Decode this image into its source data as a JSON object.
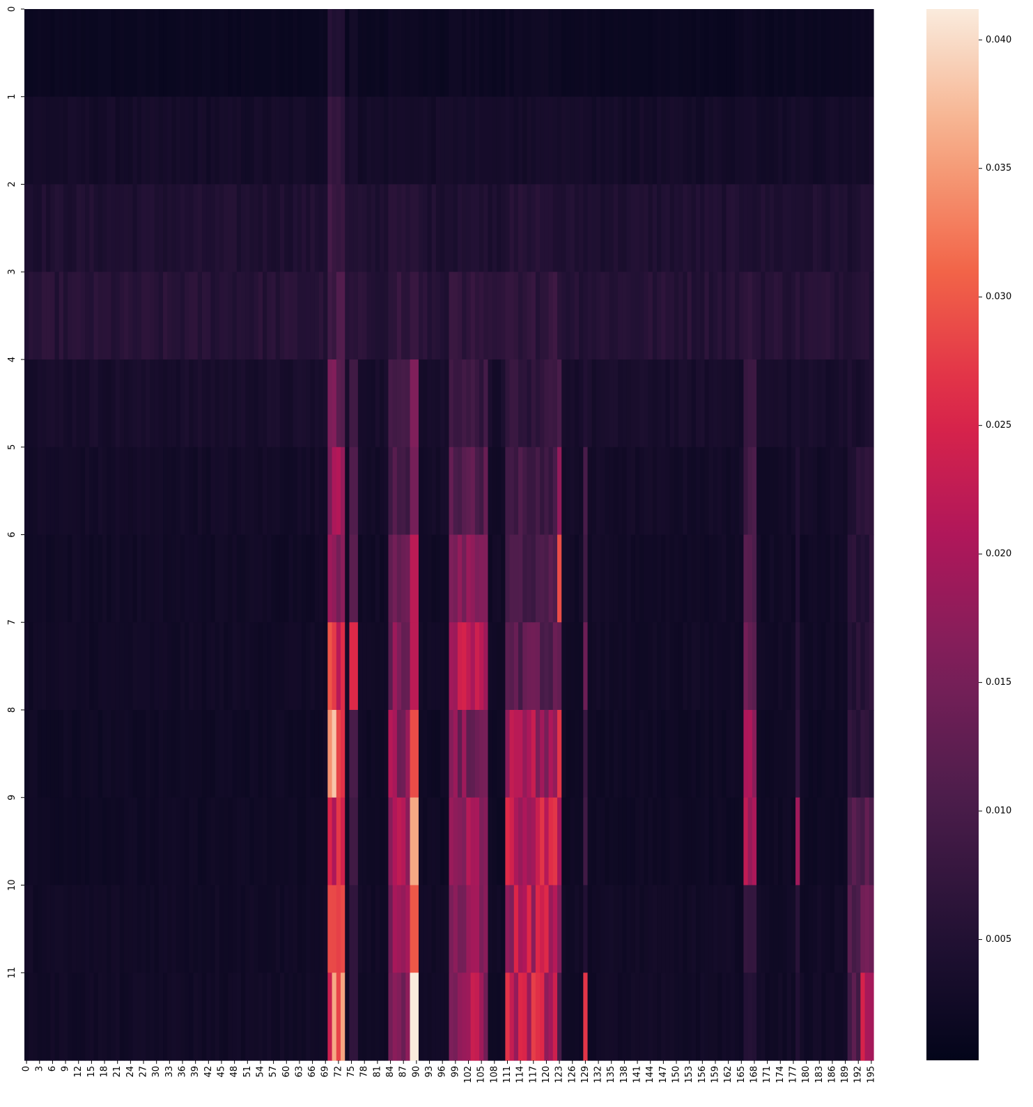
{
  "chart_data": {
    "type": "heatmap",
    "title": "",
    "xlabel": "",
    "ylabel": "",
    "rows": 12,
    "cols": 196,
    "row_labels": [
      "0",
      "1",
      "2",
      "3",
      "4",
      "5",
      "6",
      "7",
      "8",
      "9",
      "10",
      "11"
    ],
    "x_tick_step": 3,
    "x_tick_labels": [
      "0",
      "3",
      "6",
      "9",
      "12",
      "15",
      "18",
      "21",
      "24",
      "27",
      "30",
      "33",
      "36",
      "39",
      "42",
      "45",
      "48",
      "51",
      "54",
      "57",
      "60",
      "63",
      "66",
      "69",
      "72",
      "75",
      "78",
      "81",
      "84",
      "87",
      "90",
      "93",
      "96",
      "99",
      "102",
      "105",
      "108",
      "111",
      "114",
      "117",
      "120",
      "123",
      "126",
      "129",
      "132",
      "135",
      "138",
      "141",
      "144",
      "147",
      "150",
      "153",
      "156",
      "159",
      "162",
      "165",
      "168",
      "171",
      "174",
      "177",
      "180",
      "183",
      "186",
      "189",
      "192",
      "195"
    ],
    "colormap": "rocket",
    "colorbar": {
      "vmin": 0.0003,
      "vmax": 0.0412,
      "ticks": [
        0.005,
        0.01,
        0.015,
        0.02,
        0.025,
        0.03,
        0.035,
        0.04
      ],
      "tick_labels": [
        "0.005",
        "0.010",
        "0.015",
        "0.020",
        "0.025",
        "0.030",
        "0.035",
        "0.040"
      ]
    },
    "row_base_values": [
      0.0015,
      0.003,
      0.0045,
      0.0055,
      0.0035,
      0.0028,
      0.0025,
      0.0025,
      0.0022,
      0.0022,
      0.0025,
      0.0025
    ],
    "hotspots": [
      {
        "cols": [
          70,
          71,
          72,
          73
        ],
        "values": [
          0.006,
          0.007,
          0.008,
          0.009,
          0.014,
          0.018,
          0.016,
          0.024,
          0.034,
          0.022,
          0.028,
          0.03
        ]
      },
      {
        "cols": [
          75,
          76
        ],
        "values": [
          0.003,
          0.004,
          0.005,
          0.006,
          0.009,
          0.011,
          0.012,
          0.026,
          0.01,
          0.009,
          0.007,
          0.007
        ]
      },
      {
        "cols": [
          84,
          85,
          86,
          87,
          88
        ],
        "values": [
          0.002,
          0.003,
          0.005,
          0.007,
          0.008,
          0.01,
          0.012,
          0.016,
          0.018,
          0.019,
          0.016,
          0.017
        ]
      },
      {
        "cols": [
          89,
          90
        ],
        "values": [
          0.002,
          0.003,
          0.006,
          0.008,
          0.016,
          0.015,
          0.022,
          0.022,
          0.029,
          0.036,
          0.03,
          0.0412
        ]
      },
      {
        "cols": [
          98,
          99,
          100,
          101,
          102,
          103,
          104,
          105,
          106
        ],
        "values": [
          0.002,
          0.003,
          0.005,
          0.007,
          0.008,
          0.011,
          0.015,
          0.02,
          0.016,
          0.018,
          0.016,
          0.019
        ]
      },
      {
        "cols": [
          111,
          112,
          113,
          114,
          115,
          116,
          117,
          118,
          119,
          120,
          121,
          122
        ],
        "values": [
          0.002,
          0.003,
          0.005,
          0.007,
          0.007,
          0.009,
          0.01,
          0.012,
          0.02,
          0.022,
          0.021,
          0.023
        ]
      },
      {
        "cols": [
          123
        ],
        "values": [
          0.002,
          0.003,
          0.004,
          0.006,
          0.01,
          0.018,
          0.029,
          0.013,
          0.027,
          0.02,
          0.016,
          0.01
        ]
      },
      {
        "cols": [
          129
        ],
        "values": [
          0.002,
          0.003,
          0.004,
          0.005,
          0.005,
          0.01,
          0.009,
          0.014,
          0.008,
          0.009,
          0.005,
          0.027
        ]
      },
      {
        "cols": [
          166,
          167,
          168
        ],
        "values": [
          0.002,
          0.003,
          0.004,
          0.006,
          0.008,
          0.01,
          0.011,
          0.012,
          0.02,
          0.021,
          0.009,
          0.005
        ]
      },
      {
        "cols": [
          178
        ],
        "values": [
          0.002,
          0.003,
          0.004,
          0.005,
          0.004,
          0.005,
          0.005,
          0.006,
          0.007,
          0.019,
          0.006,
          0.005
        ]
      },
      {
        "cols": [
          190,
          191,
          192
        ],
        "values": [
          0.002,
          0.003,
          0.004,
          0.005,
          0.004,
          0.006,
          0.006,
          0.006,
          0.006,
          0.011,
          0.01,
          0.012
        ]
      },
      {
        "cols": [
          193,
          194,
          195
        ],
        "values": [
          0.002,
          0.003,
          0.004,
          0.005,
          0.004,
          0.006,
          0.006,
          0.006,
          0.006,
          0.011,
          0.014,
          0.02
        ]
      }
    ]
  }
}
